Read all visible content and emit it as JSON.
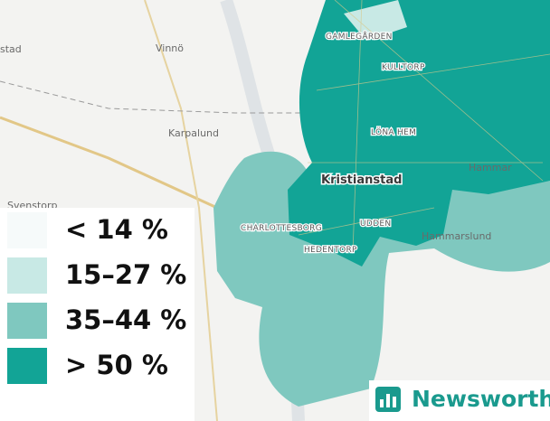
{
  "map": {
    "places": [
      "stad",
      "Vinnö",
      "Karpalund",
      "Svenstorp",
      "GAMLEGÅRDEN",
      "KULLTORP",
      "LÖNA HEM",
      "Hammar",
      "Kristianstad",
      "CHARLOTTESBORG",
      "UDDEN",
      "HEDENTORP",
      "Hammarslund"
    ],
    "legend": [
      {
        "label": "< 14 %",
        "color": "#f6fafa"
      },
      {
        "label": "15–27 %",
        "color": "#c8e9e5"
      },
      {
        "label": "35–44 %",
        "color": "#7fc8bf"
      },
      {
        "label": "> 50 %",
        "color": "#12a496"
      }
    ],
    "brand": "Newsworthy"
  }
}
